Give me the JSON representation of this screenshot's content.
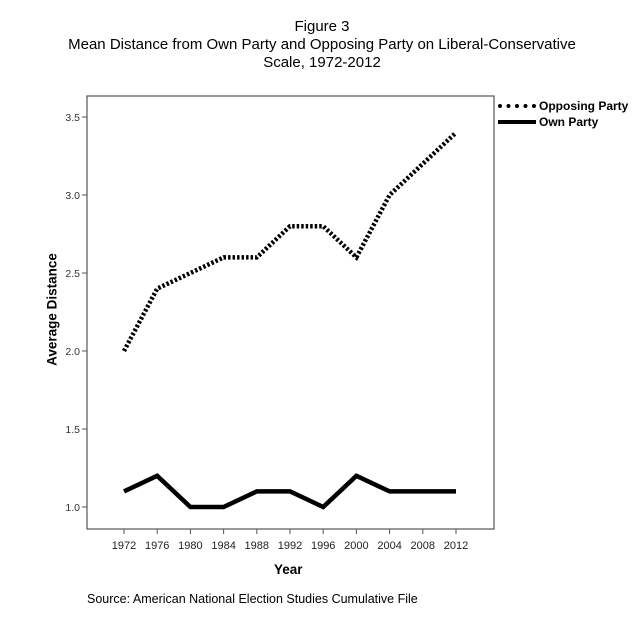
{
  "figure": {
    "label": "Figure 3",
    "title_line1": "Mean Distance from Own Party and Opposing Party on Liberal-Conservative",
    "title_line2": "Scale, 1972-2012",
    "source": "Source: American National Election Studies Cumulative File"
  },
  "axes": {
    "xlabel": "Year",
    "ylabel": "Average Distance",
    "yticks": [
      "1.0",
      "1.5",
      "2.0",
      "2.5",
      "3.0",
      "3.5"
    ],
    "xticks": [
      "1972",
      "1976",
      "1980",
      "1984",
      "1988",
      "1992",
      "1996",
      "2000",
      "2004",
      "2008",
      "2012"
    ]
  },
  "legend": {
    "opposing": "Opposing Party",
    "own": "Own Party"
  },
  "chart_data": {
    "type": "line",
    "title": "Figure 3 Mean Distance from Own Party and Opposing Party on Liberal-Conservative Scale, 1972-2012",
    "xlabel": "Year",
    "ylabel": "Average Distance",
    "x": [
      1972,
      1976,
      1980,
      1984,
      1988,
      1992,
      1996,
      2000,
      2004,
      2008,
      2012
    ],
    "series": [
      {
        "name": "Opposing Party",
        "style": "dotted",
        "values": [
          2.0,
          2.4,
          2.5,
          2.6,
          2.6,
          2.8,
          2.8,
          2.6,
          3.0,
          3.2,
          3.4
        ]
      },
      {
        "name": "Own Party",
        "style": "solid",
        "values": [
          1.1,
          1.2,
          1.0,
          1.0,
          1.1,
          1.1,
          1.0,
          1.2,
          1.1,
          1.1,
          1.1
        ]
      }
    ],
    "ylim": [
      0.9,
      3.63
    ],
    "grid": false,
    "legend_position": "right-top outside"
  }
}
